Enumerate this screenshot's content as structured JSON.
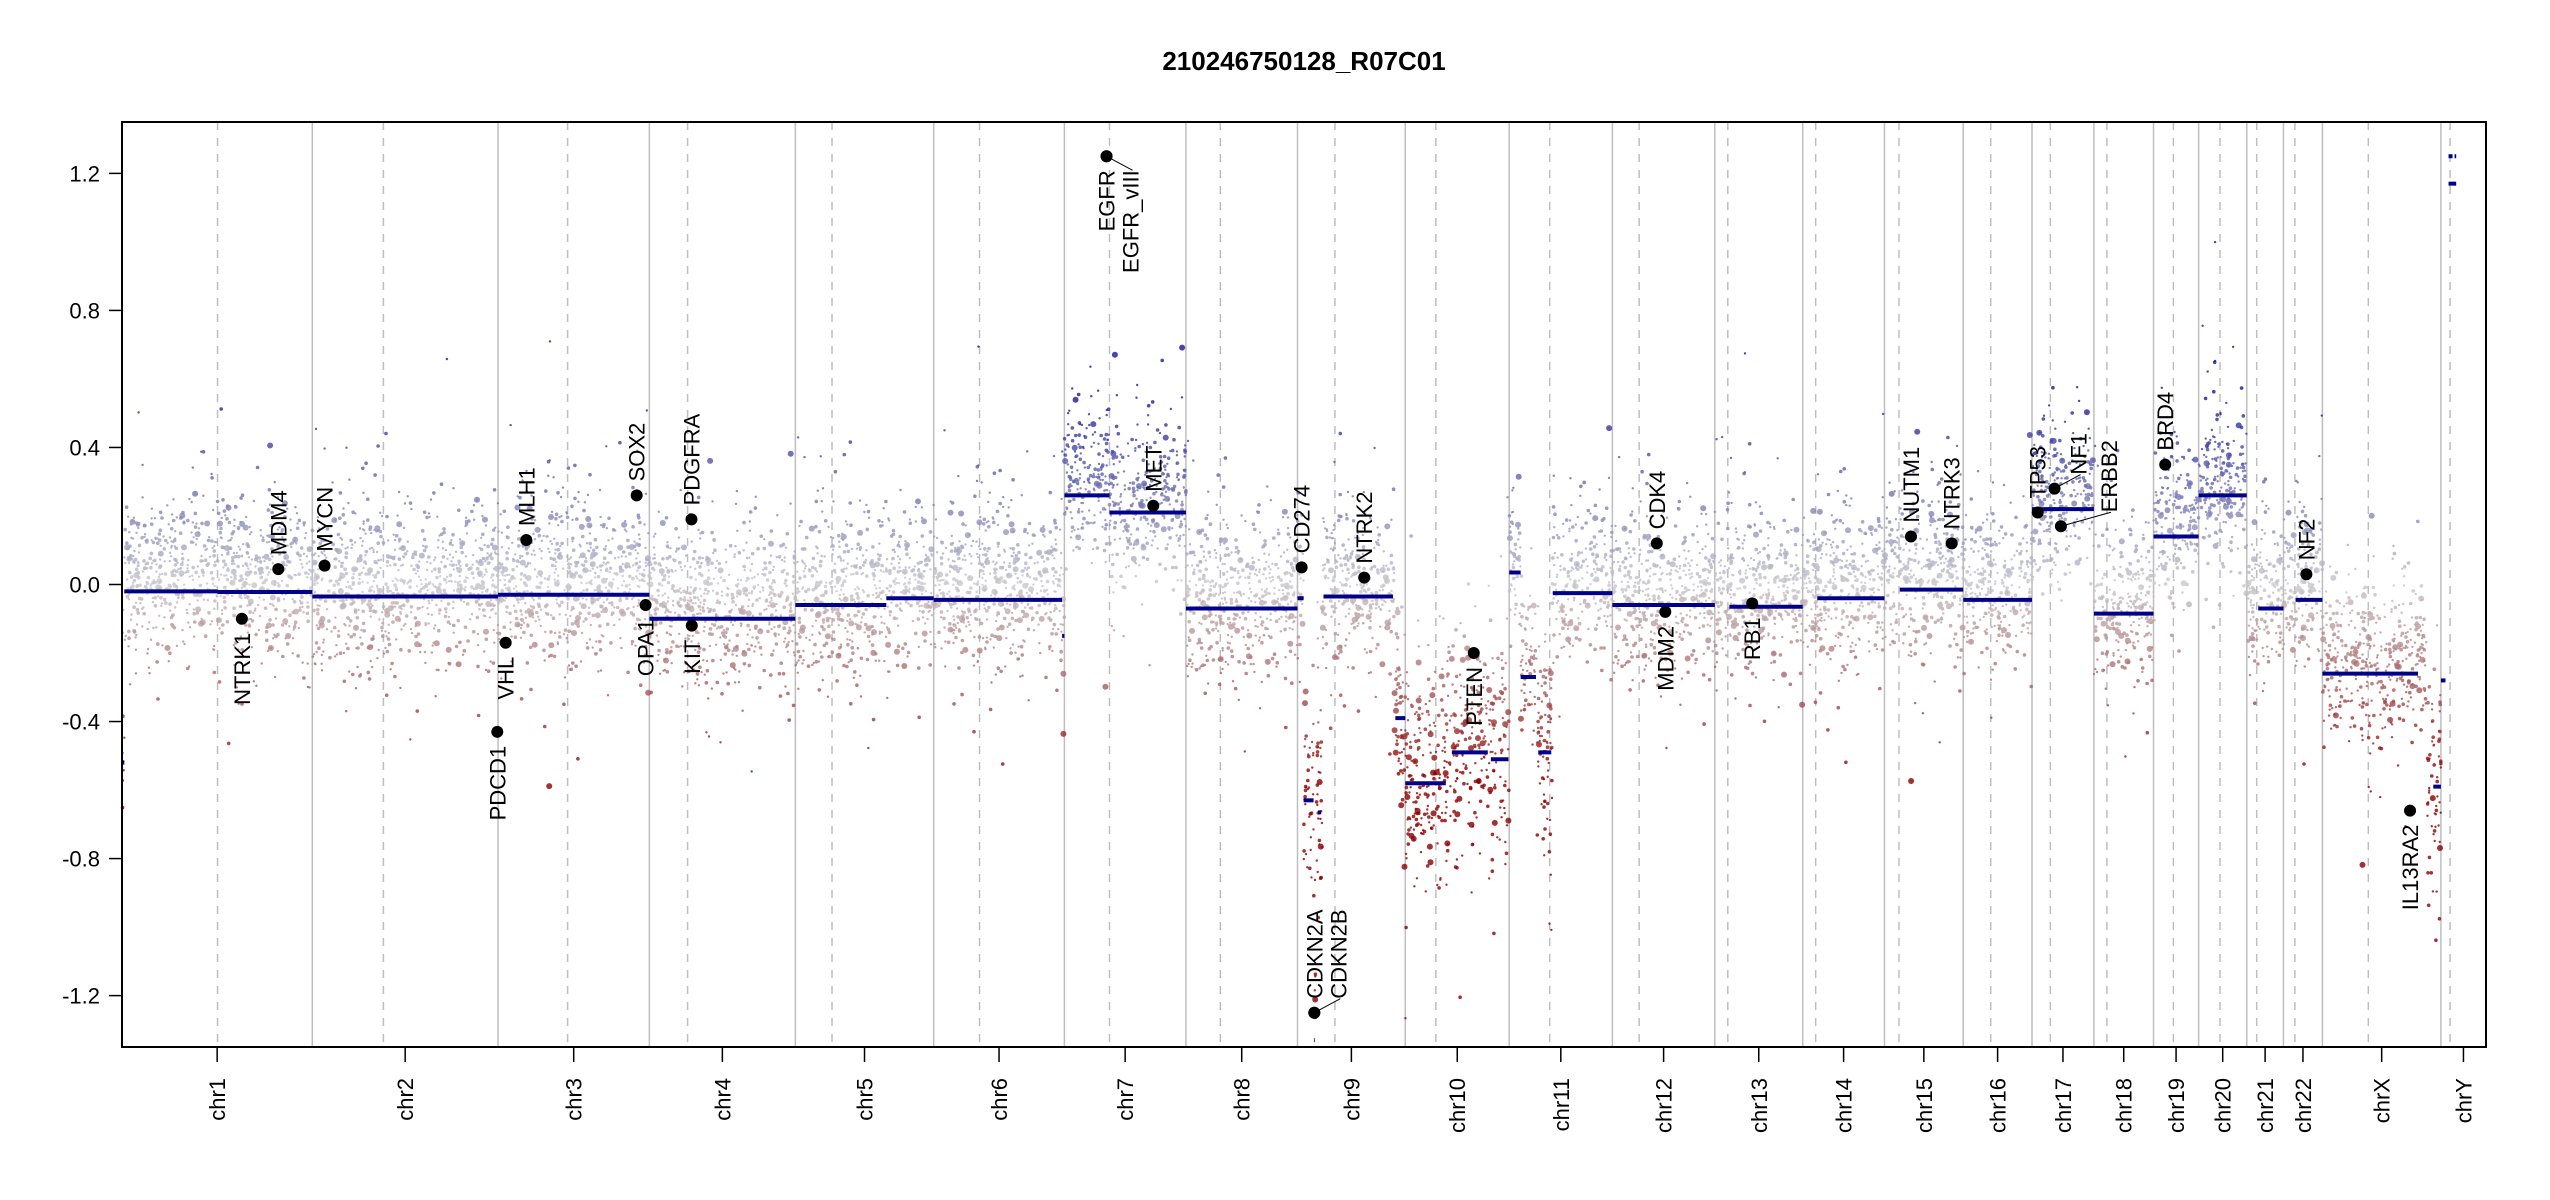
{
  "chart_data": {
    "type": "scatter",
    "title": "210246750128_R07C01",
    "xlabel": "",
    "ylabel": "",
    "ylim": [
      -1.35,
      1.35
    ],
    "y_ticks": [
      "1.2",
      "0.8",
      "0.4",
      "0.0",
      "-0.4",
      "-0.8",
      "-1.2"
    ],
    "y_tick_values": [
      1.2,
      0.8,
      0.4,
      0.0,
      -0.4,
      -0.8,
      -1.2
    ],
    "grid": "chromosome boundaries (solid) and centromeres (dashed)",
    "colors": {
      "gain": "#00008b",
      "neutral": "#c8c8c8",
      "loss": "#8b0000",
      "segment": "#00008b",
      "gene_point": "#000000"
    },
    "chromosomes": [
      {
        "name": "chr1",
        "length_mb": 249,
        "centromere_mb": 125
      },
      {
        "name": "chr2",
        "length_mb": 243,
        "centromere_mb": 93
      },
      {
        "name": "chr3",
        "length_mb": 198,
        "centromere_mb": 91
      },
      {
        "name": "chr4",
        "length_mb": 191,
        "centromere_mb": 50
      },
      {
        "name": "chr5",
        "length_mb": 181,
        "centromere_mb": 48
      },
      {
        "name": "chr6",
        "length_mb": 171,
        "centromere_mb": 60
      },
      {
        "name": "chr7",
        "length_mb": 159,
        "centromere_mb": 59
      },
      {
        "name": "chr8",
        "length_mb": 146,
        "centromere_mb": 45
      },
      {
        "name": "chr9",
        "length_mb": 141,
        "centromere_mb": 49
      },
      {
        "name": "chr10",
        "length_mb": 136,
        "centromere_mb": 40
      },
      {
        "name": "chr11",
        "length_mb": 135,
        "centromere_mb": 53
      },
      {
        "name": "chr12",
        "length_mb": 134,
        "centromere_mb": 35
      },
      {
        "name": "chr13",
        "length_mb": 115,
        "centromere_mb": 17
      },
      {
        "name": "chr14",
        "length_mb": 107,
        "centromere_mb": 17
      },
      {
        "name": "chr15",
        "length_mb": 103,
        "centromere_mb": 19
      },
      {
        "name": "chr16",
        "length_mb": 90,
        "centromere_mb": 36
      },
      {
        "name": "chr17",
        "length_mb": 81,
        "centromere_mb": 24
      },
      {
        "name": "chr18",
        "length_mb": 78,
        "centromere_mb": 17
      },
      {
        "name": "chr19",
        "length_mb": 59,
        "centromere_mb": 26
      },
      {
        "name": "chr20",
        "length_mb": 63,
        "centromere_mb": 28
      },
      {
        "name": "chr21",
        "length_mb": 48,
        "centromere_mb": 13
      },
      {
        "name": "chr22",
        "length_mb": 51,
        "centromere_mb": 15
      },
      {
        "name": "chrX",
        "length_mb": 155,
        "centromere_mb": 60
      },
      {
        "name": "chrY",
        "length_mb": 59,
        "centromere_mb": 12
      }
    ],
    "segments": [
      {
        "chrom": "chr1",
        "start": 0,
        "end": 3,
        "value": -0.52
      },
      {
        "chrom": "chr1",
        "start": 3,
        "end": 125,
        "value": -0.02
      },
      {
        "chrom": "chr1",
        "start": 125,
        "end": 249,
        "value": -0.022
      },
      {
        "chrom": "chr2",
        "start": 0,
        "end": 243,
        "value": -0.035
      },
      {
        "chrom": "chr3",
        "start": 0,
        "end": 198,
        "value": -0.03
      },
      {
        "chrom": "chr4",
        "start": 0,
        "end": 191,
        "value": -0.1
      },
      {
        "chrom": "chr5",
        "start": 0,
        "end": 119,
        "value": -0.06
      },
      {
        "chrom": "chr5",
        "start": 119,
        "end": 181,
        "value": -0.04
      },
      {
        "chrom": "chr6",
        "start": 0,
        "end": 168,
        "value": -0.045
      },
      {
        "chrom": "chr6",
        "start": 168,
        "end": 171,
        "value": -0.15
      },
      {
        "chrom": "chr7",
        "start": 0,
        "end": 59,
        "value": 0.26
      },
      {
        "chrom": "chr7",
        "start": 59,
        "end": 159,
        "value": 0.21
      },
      {
        "chrom": "chr8",
        "start": 0,
        "end": 146,
        "value": -0.07
      },
      {
        "chrom": "chr9",
        "start": 0,
        "end": 8,
        "value": -0.04
      },
      {
        "chrom": "chr9",
        "start": 8,
        "end": 21,
        "value": -0.63
      },
      {
        "chrom": "chr9",
        "start": 21.5,
        "end": 22.5,
        "value": -1.33
      },
      {
        "chrom": "chr9",
        "start": 27,
        "end": 31,
        "value": -0.665
      },
      {
        "chrom": "chr9",
        "start": 34,
        "end": 125,
        "value": -0.035
      },
      {
        "chrom": "chr9",
        "start": 128,
        "end": 141,
        "value": -0.39
      },
      {
        "chrom": "chr10",
        "start": 0,
        "end": 53,
        "value": -0.58
      },
      {
        "chrom": "chr10",
        "start": 61,
        "end": 108,
        "value": -0.49
      },
      {
        "chrom": "chr10",
        "start": 112,
        "end": 135,
        "value": -0.51
      },
      {
        "chrom": "chr11",
        "start": 0,
        "end": 15,
        "value": 0.035
      },
      {
        "chrom": "chr11",
        "start": 15,
        "end": 35,
        "value": -0.27
      },
      {
        "chrom": "chr11",
        "start": 38,
        "end": 55,
        "value": -0.49
      },
      {
        "chrom": "chr11",
        "start": 57,
        "end": 135,
        "value": -0.025
      },
      {
        "chrom": "chr12",
        "start": 0,
        "end": 134,
        "value": -0.06
      },
      {
        "chrom": "chr13",
        "start": 19,
        "end": 115,
        "value": -0.065
      },
      {
        "chrom": "chr14",
        "start": 19,
        "end": 107,
        "value": -0.04
      },
      {
        "chrom": "chr15",
        "start": 20,
        "end": 103,
        "value": -0.015
      },
      {
        "chrom": "chr16",
        "start": 0,
        "end": 90,
        "value": -0.045
      },
      {
        "chrom": "chr17",
        "start": 0,
        "end": 81,
        "value": 0.22
      },
      {
        "chrom": "chr18",
        "start": 0,
        "end": 78,
        "value": -0.085
      },
      {
        "chrom": "chr19",
        "start": 0,
        "end": 59,
        "value": 0.14
      },
      {
        "chrom": "chr20",
        "start": 0,
        "end": 63,
        "value": 0.26
      },
      {
        "chrom": "chr21",
        "start": 15,
        "end": 48,
        "value": -0.07
      },
      {
        "chrom": "chr22",
        "start": 16,
        "end": 51,
        "value": -0.045
      },
      {
        "chrom": "chrX",
        "start": 0,
        "end": 125,
        "value": -0.26
      },
      {
        "chrom": "chrX",
        "start": 145,
        "end": 155,
        "value": -0.59
      },
      {
        "chrom": "chrY",
        "start": 0,
        "end": 6,
        "value": -0.28
      },
      {
        "chrom": "chrY",
        "start": 10,
        "end": 20,
        "value": 1.17
      },
      {
        "chrom": "chrY",
        "start": 10,
        "end": 20,
        "value": 1.25
      }
    ],
    "genes": [
      {
        "name": "NTRK1",
        "chrom": "chr1",
        "pos": 156.8,
        "value": -0.1
      },
      {
        "name": "MDM4",
        "chrom": "chr1",
        "pos": 204.5,
        "value": 0.045
      },
      {
        "name": "MYCN",
        "chrom": "chr2",
        "pos": 16,
        "value": 0.055
      },
      {
        "name": "PDCD1",
        "chrom": "chr2",
        "pos": 242,
        "value": -0.43
      },
      {
        "name": "VHL",
        "chrom": "chr3",
        "pos": 10,
        "value": -0.17
      },
      {
        "name": "MLH1",
        "chrom": "chr3",
        "pos": 37,
        "value": 0.13
      },
      {
        "name": "SOX2",
        "chrom": "chr3",
        "pos": 181.4,
        "value": 0.26
      },
      {
        "name": "OPA1",
        "chrom": "chr3",
        "pos": 193,
        "value": -0.06
      },
      {
        "name": "PDGFRA",
        "chrom": "chr4",
        "pos": 55.1,
        "value": 0.19
      },
      {
        "name": "KIT",
        "chrom": "chr4",
        "pos": 55.5,
        "value": -0.12
      },
      {
        "name": "EGFR",
        "chrom": "chr7",
        "pos": 55.1,
        "value": 1.25
      },
      {
        "name": "EGFR_vIII",
        "chrom": "chr7",
        "pos": 55.2,
        "value": 1.25
      },
      {
        "name": "MET",
        "chrom": "chr7",
        "pos": 116.3,
        "value": 0.23
      },
      {
        "name": "CD274",
        "chrom": "chr9",
        "pos": 5.4,
        "value": 0.05
      },
      {
        "name": "CDKN2A",
        "chrom": "chr9",
        "pos": 21.97,
        "value": -1.25
      },
      {
        "name": "CDKN2B",
        "chrom": "chr9",
        "pos": 22.0,
        "value": -1.25
      },
      {
        "name": "NTRK2",
        "chrom": "chr9",
        "pos": 87.3,
        "value": 0.02
      },
      {
        "name": "PTEN",
        "chrom": "chr10",
        "pos": 89.6,
        "value": -0.2
      },
      {
        "name": "CDK4",
        "chrom": "chr12",
        "pos": 58.1,
        "value": 0.12
      },
      {
        "name": "MDM2",
        "chrom": "chr12",
        "pos": 69.2,
        "value": -0.08
      },
      {
        "name": "RB1",
        "chrom": "chr13",
        "pos": 48.9,
        "value": -0.055
      },
      {
        "name": "NUTM1",
        "chrom": "chr15",
        "pos": 34.6,
        "value": 0.14
      },
      {
        "name": "NTRK3",
        "chrom": "chr15",
        "pos": 88,
        "value": 0.12
      },
      {
        "name": "TP53",
        "chrom": "chr17",
        "pos": 7.5,
        "value": 0.21
      },
      {
        "name": "NF1",
        "chrom": "chr17",
        "pos": 29.5,
        "value": 0.28
      },
      {
        "name": "ERBB2",
        "chrom": "chr17",
        "pos": 37.8,
        "value": 0.17
      },
      {
        "name": "BRD4",
        "chrom": "chr19",
        "pos": 15.3,
        "value": 0.35
      },
      {
        "name": "NF2",
        "chrom": "chr22",
        "pos": 30,
        "value": 0.03
      },
      {
        "name": "IL13RA2",
        "chrom": "chrX",
        "pos": 114.6,
        "value": -0.66
      }
    ]
  }
}
